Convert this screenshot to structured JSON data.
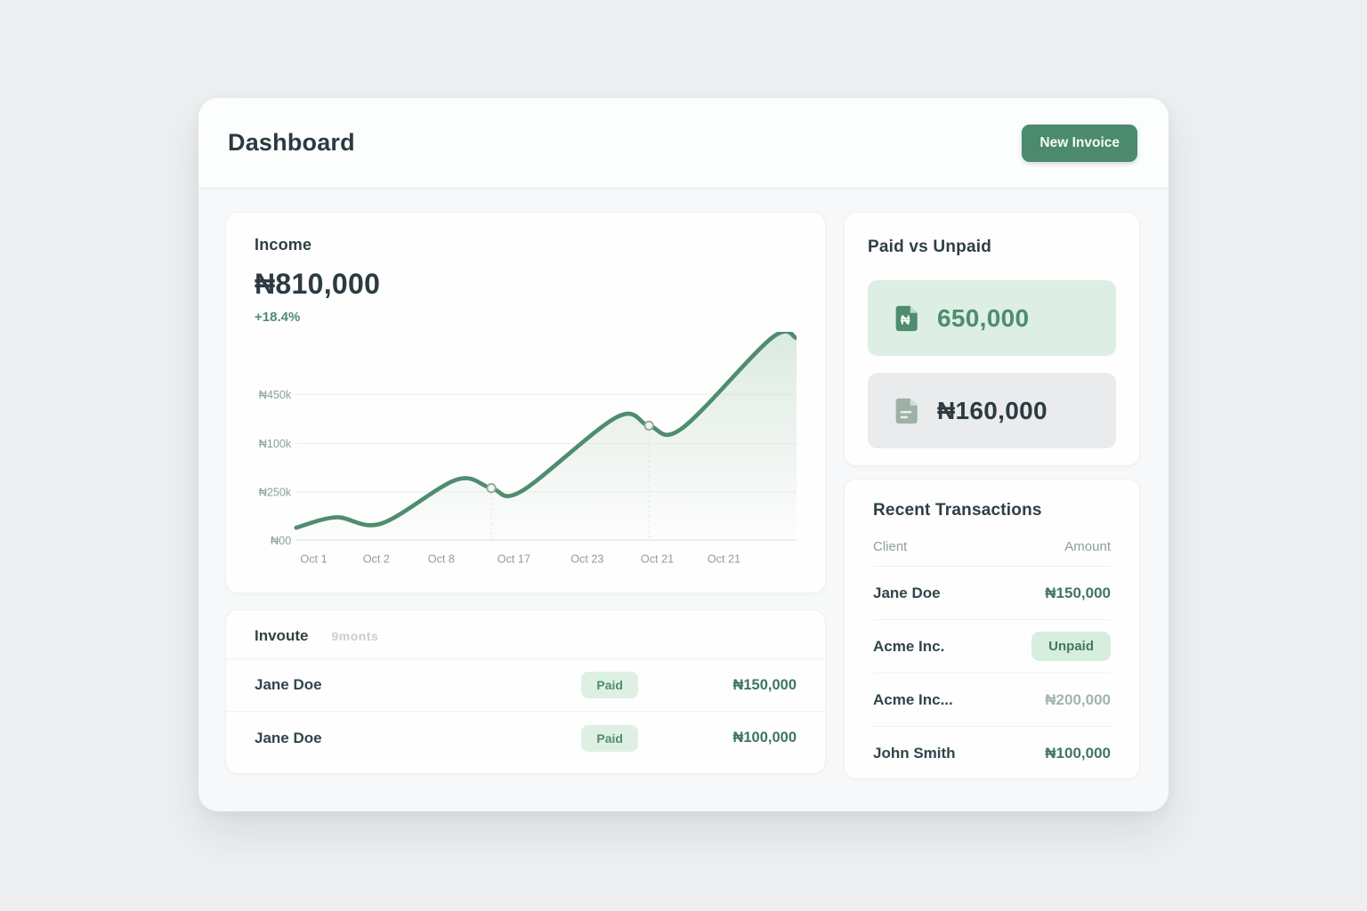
{
  "page": {
    "title": "Dashboard",
    "new_invoice_label": "New Invoice"
  },
  "income_card": {
    "title": "Income",
    "amount": "₦810,000",
    "change": "+18.4%"
  },
  "chart_data": {
    "type": "area",
    "title": "Income",
    "total_label": "₦810,000",
    "change_label": "+18.4%",
    "x_ticks": [
      "Oct 1",
      "Oct 2",
      "Oct 8",
      "Oct 17",
      "Oct 23",
      "Oct 21",
      "Oct 21"
    ],
    "y_ticks": [
      "₦450k",
      "₦100k",
      "₦250k",
      "₦00"
    ],
    "grid": "horizontal",
    "line_color": "#4e8d6e",
    "fill_color": "#d7e9dc",
    "points_note": "x = percent across plot, y = percent of plot height above baseline (axis labels in source image are inconsistent; values estimated from pixels)",
    "points": [
      {
        "x": 0,
        "y": 6
      },
      {
        "x": 8,
        "y": 11
      },
      {
        "x": 17,
        "y": 8
      },
      {
        "x": 32,
        "y": 29
      },
      {
        "x": 39,
        "y": 25
      },
      {
        "x": 45,
        "y": 23.5
      },
      {
        "x": 64,
        "y": 59
      },
      {
        "x": 70.5,
        "y": 55
      },
      {
        "x": 77,
        "y": 53.5
      },
      {
        "x": 95,
        "y": 97
      },
      {
        "x": 100,
        "y": 97
      }
    ],
    "markers": [
      {
        "x": 39,
        "y": 25
      },
      {
        "x": 70.5,
        "y": 55
      }
    ]
  },
  "paid_vs_unpaid": {
    "title": "Paid vs Unpaid",
    "paid": {
      "value": "650,000",
      "icon": "naira-document-icon"
    },
    "unpaid": {
      "value": "₦160,000",
      "icon": "document-icon"
    }
  },
  "invoices": {
    "title": "Invoute",
    "subtitle": "9monts",
    "rows": [
      {
        "client": "Jane Doe",
        "status": "Paid",
        "amount": "₦150,000"
      },
      {
        "client": "Jane Doe",
        "status": "Paid",
        "amount": "₦100,000"
      }
    ]
  },
  "transactions": {
    "title": "Recent Transactions",
    "col_client": "Client",
    "col_amount": "Amount",
    "rows": [
      {
        "client": "Jane Doe",
        "amount": "₦150,000",
        "amount_style": "strong"
      },
      {
        "client": "Acme Inc.",
        "badge": "Unpaid"
      },
      {
        "client": "Acme Inc...",
        "amount": "₦200,000",
        "amount_style": "muted"
      },
      {
        "client": "John Smith",
        "amount": "₦100,000",
        "amount_style": "strong"
      }
    ]
  },
  "colors": {
    "accent_green": "#4b8a6c",
    "chart_line": "#4e8d6e",
    "paid_badge_bg": "#def0e4",
    "unpaid_badge_bg": "#d7edde",
    "pill_green_bg": "#ddeee4",
    "pill_gray_bg": "#e9ebec",
    "page_bg": "#edeff1"
  }
}
